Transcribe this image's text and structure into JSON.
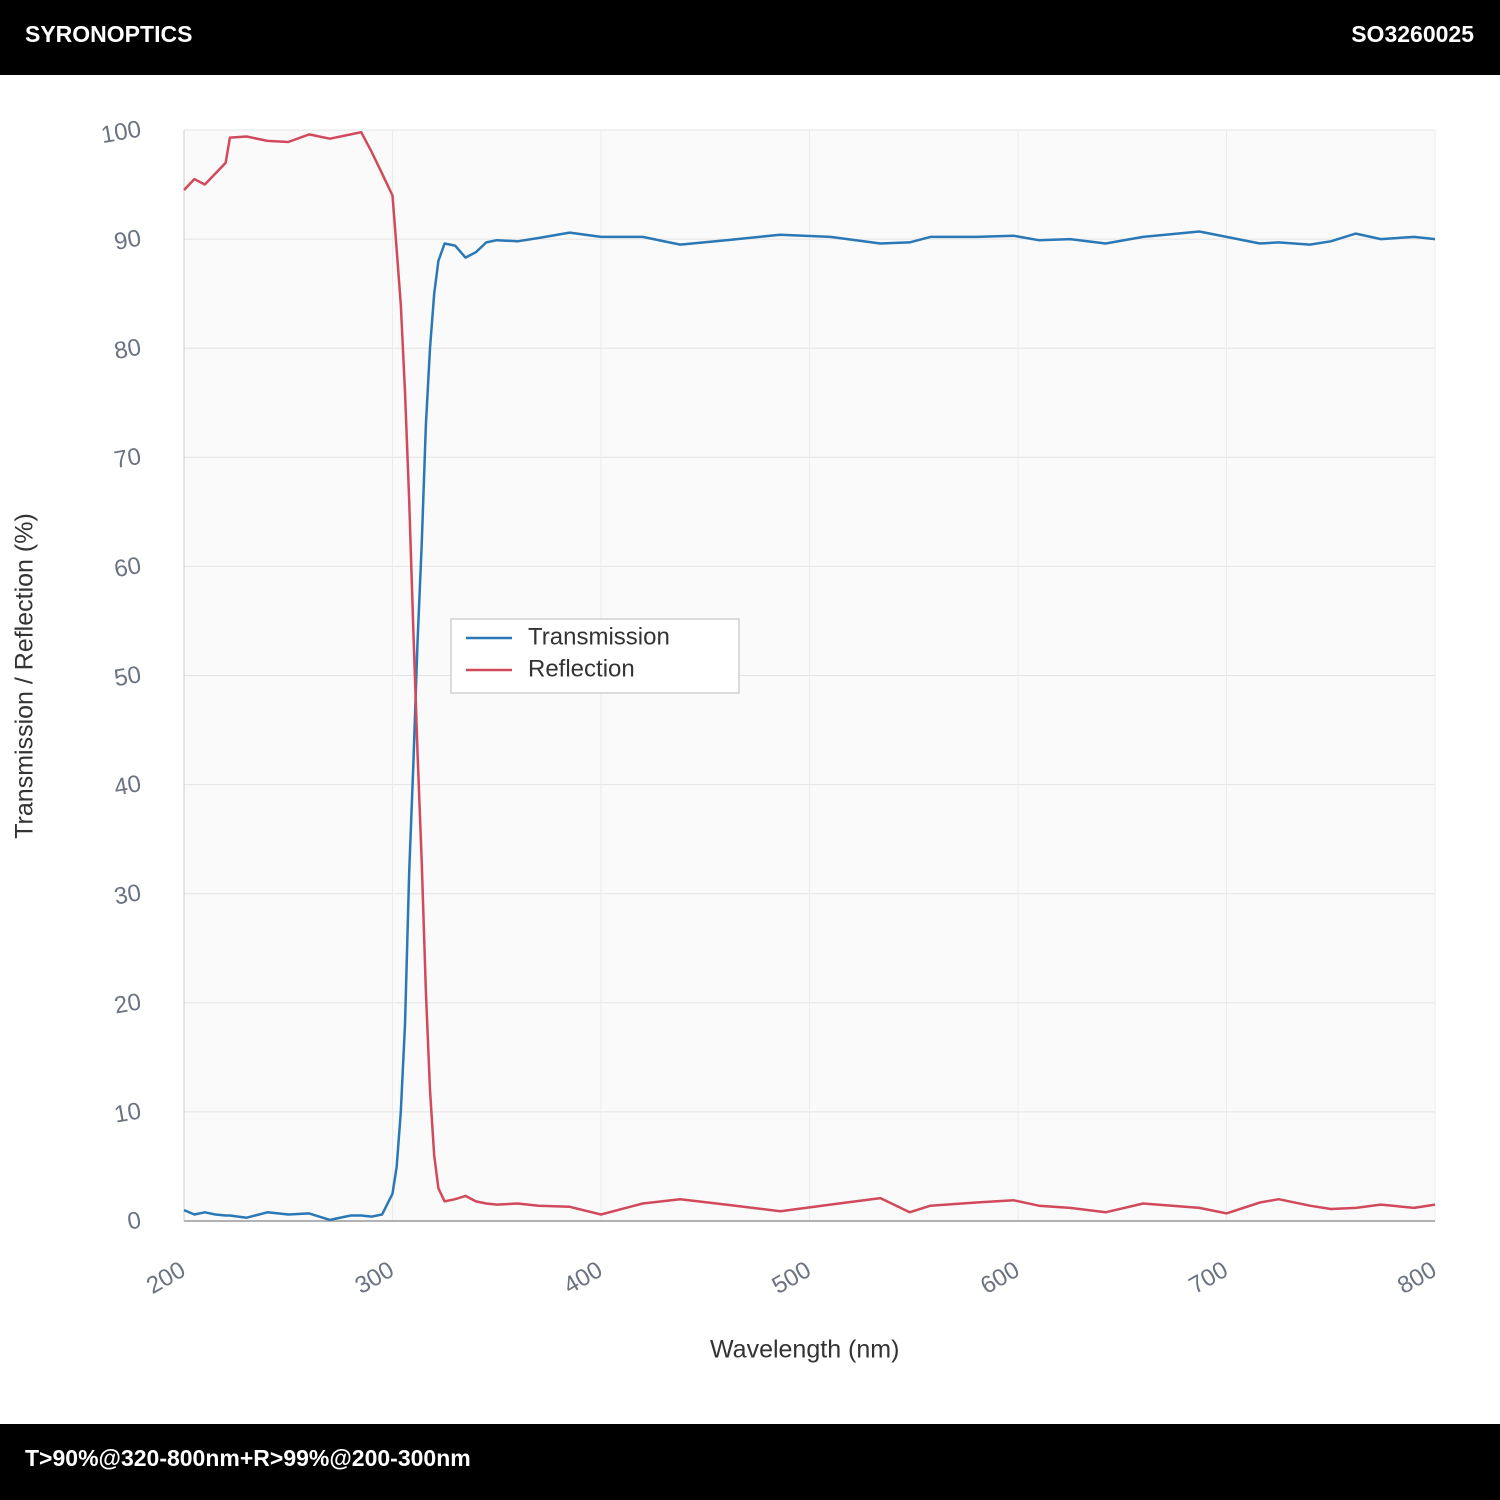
{
  "header": {
    "brand": "SYRONOPTICS",
    "code": "SO3260025"
  },
  "footer": {
    "text": "T>90%@320-800nm+R>99%@200-300nm"
  },
  "chart_data": {
    "type": "line",
    "xlabel": "Wavelength (nm)",
    "ylabel": "Transmission / Reflection (%)",
    "xlim": [
      200,
      800
    ],
    "xticks": [
      200,
      300,
      400,
      500,
      600,
      700,
      800
    ],
    "ylim": [
      0,
      100
    ],
    "yticks": [
      0,
      10,
      20,
      30,
      40,
      50,
      60,
      70,
      80,
      90,
      100
    ],
    "grid": true,
    "x": [
      200,
      205,
      210,
      215,
      220,
      222,
      230,
      240,
      250,
      260,
      270,
      280,
      285,
      290,
      295,
      300,
      302,
      304,
      306,
      308,
      310,
      312,
      314,
      316,
      318,
      320,
      322,
      325,
      330,
      335,
      340,
      345,
      350,
      360,
      370,
      385,
      400,
      420,
      438,
      460,
      486,
      510,
      534,
      548,
      558,
      580,
      598,
      610,
      625,
      642,
      660,
      687,
      700,
      716,
      725,
      740,
      750,
      762,
      774,
      790,
      800
    ],
    "series": [
      {
        "name": "Transmission",
        "color": "#2a78b5",
        "values": [
          1.0,
          0.6,
          0.8,
          0.6,
          0.5,
          0.5,
          0.3,
          0.8,
          0.6,
          0.7,
          0.1,
          0.5,
          0.5,
          0.4,
          0.6,
          2.5,
          5,
          10,
          18,
          32,
          42,
          53,
          62,
          73,
          80,
          85,
          88,
          89.6,
          89.4,
          88.3,
          88.8,
          89.7,
          89.9,
          89.8,
          90.1,
          90.6,
          90.2,
          90.2,
          89.5,
          89.9,
          90.4,
          90.2,
          89.6,
          89.7,
          90.2,
          90.2,
          90.3,
          89.9,
          90.0,
          89.6,
          90.2,
          90.7,
          90.2,
          89.6,
          89.7,
          89.5,
          89.8,
          90.5,
          90.0,
          90.2,
          90.0
        ]
      },
      {
        "name": "Reflection",
        "color": "#d04a5c",
        "values": [
          94.5,
          95.5,
          95.0,
          96,
          97,
          99.3,
          99.4,
          99.0,
          98.9,
          99.6,
          99.2,
          99.6,
          99.8,
          98,
          96,
          94,
          89,
          84,
          76,
          66,
          54,
          43,
          33,
          21,
          12,
          6,
          3,
          1.8,
          2.0,
          2.3,
          1.8,
          1.6,
          1.5,
          1.6,
          1.4,
          1.3,
          0.6,
          1.6,
          2.0,
          1.5,
          0.9,
          1.5,
          2.1,
          0.8,
          1.4,
          1.7,
          1.9,
          1.4,
          1.2,
          0.8,
          1.6,
          1.2,
          0.7,
          1.7,
          2.0,
          1.4,
          1.1,
          1.2,
          1.5,
          1.2,
          1.5
        ]
      }
    ]
  }
}
